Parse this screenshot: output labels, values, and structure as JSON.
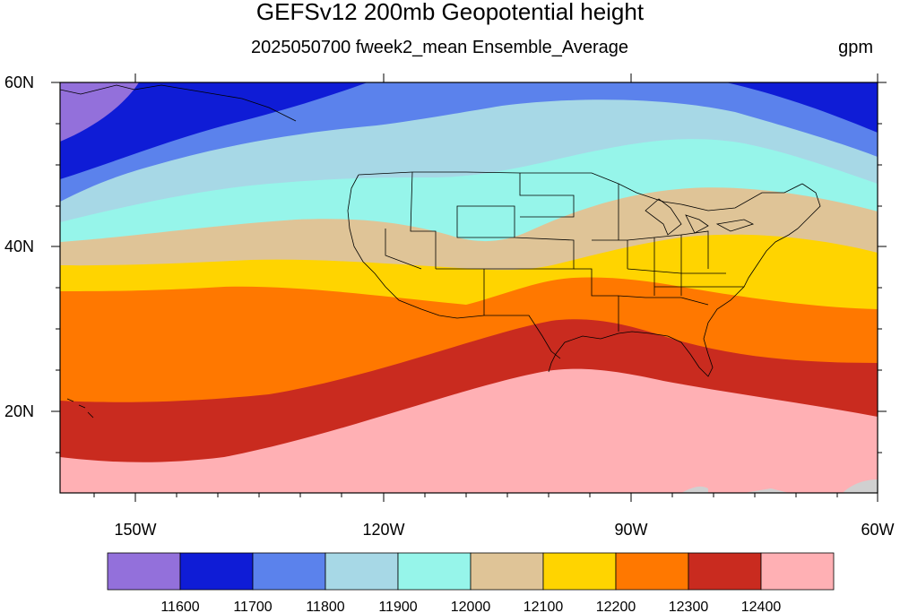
{
  "title": "GEFSv12 200mb Geopotential height",
  "subtitle": "2025050700 fweek2_mean Ensemble_Average",
  "units": "gpm",
  "axes": {
    "lon_labels": [
      "150W",
      "120W",
      "90W",
      "60W"
    ],
    "lat_labels": [
      "60N",
      "40N",
      "20N"
    ]
  },
  "colorbar": {
    "levels": [
      "11600",
      "11700",
      "11800",
      "11900",
      "12000",
      "12100",
      "12200",
      "12300",
      "12400"
    ],
    "colors": [
      "#9370db",
      "#0f1cd6",
      "#5b82ec",
      "#a7d8e6",
      "#96f5ea",
      "#dfc497",
      "#ffd400",
      "#ff7800",
      "#c92b1f",
      "#ffb0b4"
    ]
  }
}
